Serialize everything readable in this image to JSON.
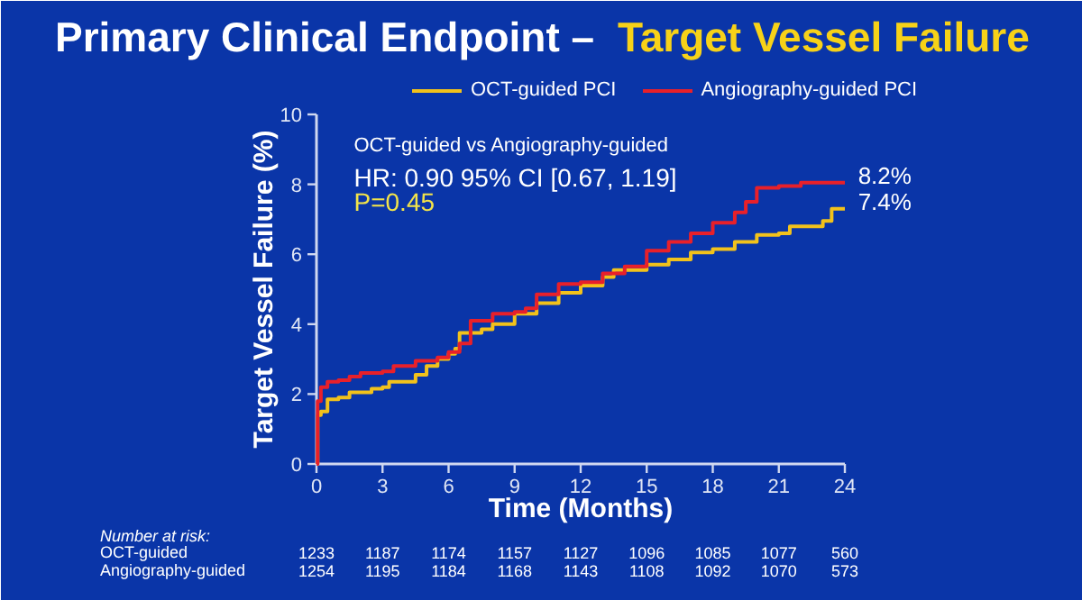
{
  "chart_data": {
    "type": "step",
    "title": "Primary Clinical Endpoint –",
    "subtitle": "Target Vessel Failure",
    "xlabel": "Time (Months)",
    "ylabel": "Target Vessel Failure (%)",
    "xlim": [
      0,
      24
    ],
    "ylim": [
      0,
      10
    ],
    "xticks": [
      0,
      3,
      6,
      9,
      12,
      15,
      18,
      21,
      24
    ],
    "yticks": [
      0,
      2,
      4,
      6,
      8,
      10
    ],
    "grid": false,
    "legend": "top",
    "line_style": "solid",
    "series": [
      {
        "name": "OCT-guided PCI",
        "color": "#f2c21b",
        "x": [
          0,
          0.05,
          0.2,
          0.5,
          1,
          1.5,
          2.5,
          3,
          3.3,
          4.5,
          5,
          5.5,
          6,
          6.3,
          6.5,
          7.5,
          8,
          9,
          10,
          11,
          12,
          13,
          13.5,
          15,
          16,
          17,
          18,
          19,
          20,
          21,
          21.5,
          23,
          23.4,
          24
        ],
        "values": [
          0,
          1.4,
          1.5,
          1.85,
          1.9,
          2.05,
          2.15,
          2.2,
          2.35,
          2.55,
          2.8,
          3.0,
          3.15,
          3.3,
          3.75,
          3.85,
          4.0,
          4.3,
          4.6,
          4.9,
          5.1,
          5.35,
          5.55,
          5.7,
          5.85,
          6.05,
          6.15,
          6.35,
          6.55,
          6.6,
          6.8,
          6.95,
          7.3,
          7.3
        ]
      },
      {
        "name": "Angiography-guided PCI",
        "color": "#e8202a",
        "x": [
          0,
          0.05,
          0.2,
          0.5,
          1,
          1.5,
          2,
          3,
          3.5,
          4.5,
          5.5,
          6,
          6.5,
          7,
          8,
          9,
          9.5,
          10,
          11,
          12,
          13,
          14,
          15,
          16,
          17,
          18,
          19,
          19.5,
          20,
          21,
          22,
          24
        ],
        "values": [
          0,
          1.8,
          2.2,
          2.35,
          2.4,
          2.5,
          2.6,
          2.65,
          2.8,
          2.95,
          3.05,
          3.2,
          3.45,
          4.1,
          4.3,
          4.35,
          4.45,
          4.85,
          5.15,
          5.2,
          5.45,
          5.65,
          6.1,
          6.35,
          6.6,
          6.9,
          7.2,
          7.5,
          7.9,
          7.95,
          8.05,
          8.05
        ]
      }
    ],
    "annotations": [
      "OCT-guided vs Angiography-guided",
      "HR: 0.90 95% CI [0.67, 1.19]",
      "P=0.45",
      {
        "text": "8.2%",
        "x": 24,
        "y": 8.05
      },
      {
        "text": "7.4%",
        "x": 24,
        "y": 7.3
      },
      "Number at risk:",
      "OCT-guided",
      "1233",
      "1187",
      "1174",
      "1157",
      "1127",
      "1096",
      "1085",
      "1077",
      "560",
      "Angiography-guided",
      "1254",
      "1195",
      "1184",
      "1168",
      "1143",
      "1108",
      "1092",
      "1070",
      "573"
    ]
  }
}
